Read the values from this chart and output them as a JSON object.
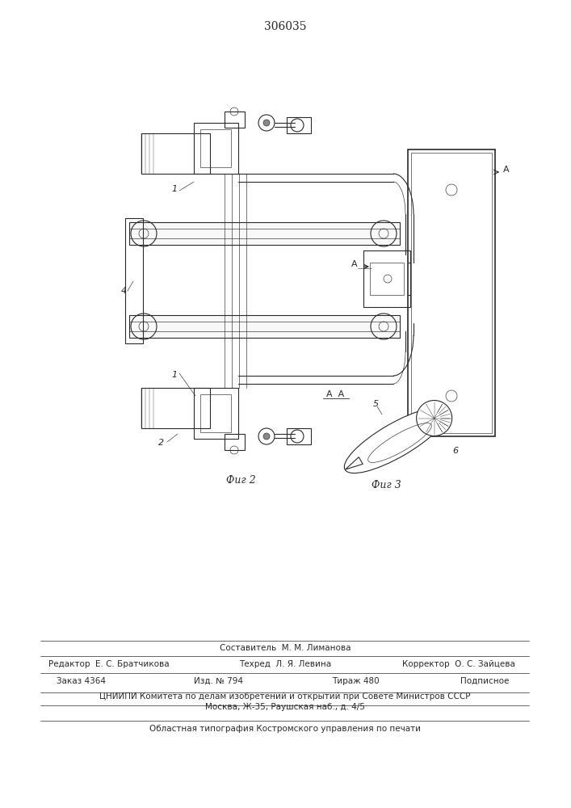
{
  "title": "306035",
  "bg_color": "#ffffff",
  "lc": "#2a2a2a",
  "lw": 0.8,
  "lw_thin": 0.45,
  "lw_thick": 1.2,
  "footer": {
    "line_sestavitel": "Составитель  М. М. Лиманова",
    "line_redaktor": "Редактор  Е. С. Братчикова",
    "line_tehred": "Техред  Л. Я. Левина",
    "line_korrektor": "Корректор  О. С. Зайцева",
    "zakaz": "Заказ 4364",
    "izd": "Изд. № 794",
    "tirazh": "Тираж 480",
    "podpisnoe": "Подписное",
    "tsniip1": "ЦНИИПИ Комитета по делам изобретений и открытий при Совете Министров СССР",
    "tsniip2": "Москва, Ж-35, Раушская наб., д. 4/5",
    "tipografiya": "Областная типография Костромского управления по печати"
  },
  "fig2_label": "Фиг 2",
  "fig3_label": "Фиг 3"
}
